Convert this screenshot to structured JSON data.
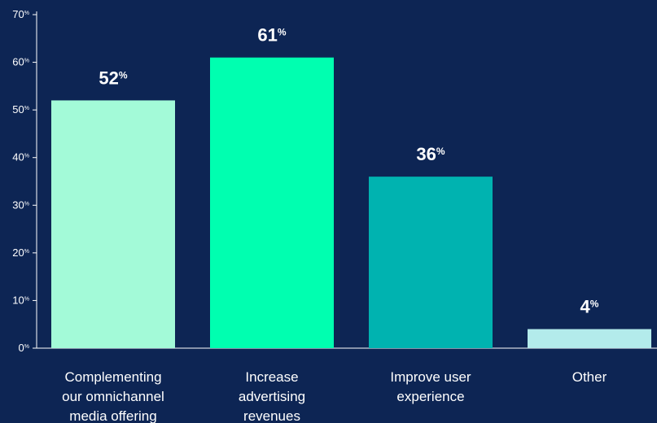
{
  "chart_data": {
    "type": "bar",
    "title": "",
    "xlabel": "",
    "ylabel": "",
    "ylim": [
      0,
      70
    ],
    "yticks": [
      0,
      10,
      20,
      30,
      40,
      50,
      60,
      70
    ],
    "tick_suffix": "%",
    "categories": [
      [
        "Complementing",
        "our omnichannel",
        "media offering"
      ],
      [
        "Increase",
        "advertising",
        "revenues"
      ],
      [
        "Improve user",
        "experience"
      ],
      [
        "Other"
      ]
    ],
    "values": [
      52,
      61,
      36,
      4
    ],
    "value_labels": [
      "52",
      "61",
      "36",
      "4"
    ],
    "value_suffix": "%",
    "bar_colors": [
      "#a3fad8",
      "#00ffb0",
      "#00b3b0",
      "#b3ebeb"
    ],
    "grid": false,
    "legend": "none"
  },
  "colors": {
    "background": "#0d2554",
    "axis": "#ffffff",
    "text": "#ffffff"
  }
}
